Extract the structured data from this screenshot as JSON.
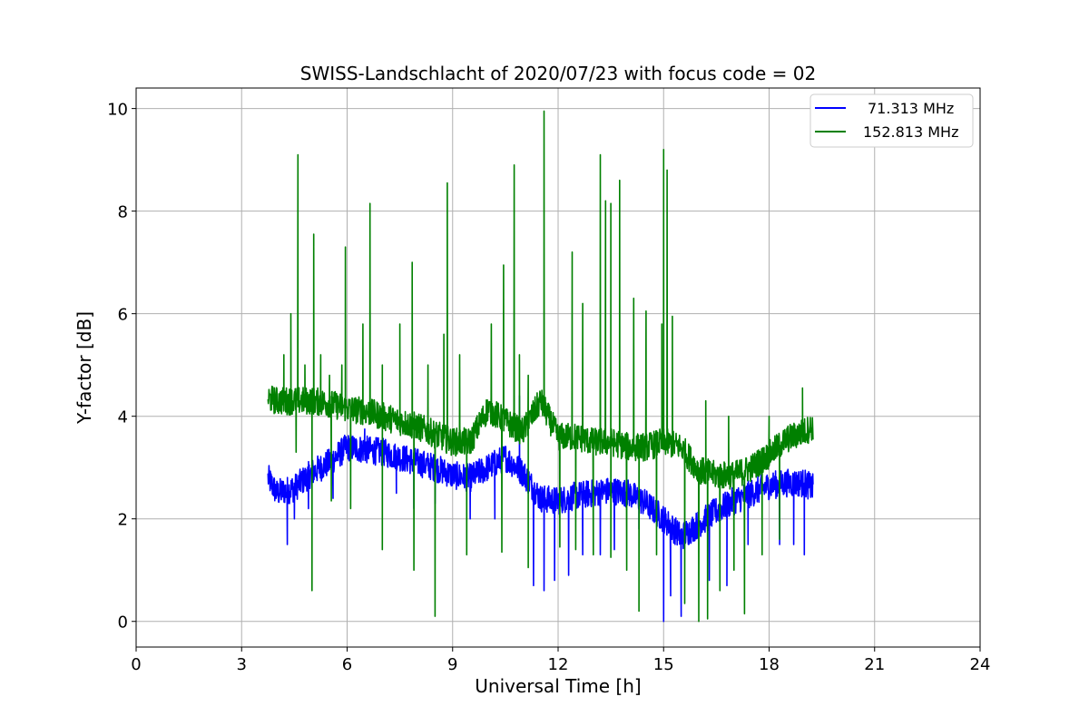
{
  "chart_data": {
    "type": "line",
    "title": "SWISS-Landschlacht of 2020/07/23 with focus code = 02",
    "xlabel": "Universal Time [h]",
    "ylabel": "Y-factor [dB]",
    "xlim": [
      0,
      24
    ],
    "ylim": [
      -0.5,
      10.4
    ],
    "xticks": [
      0,
      3,
      6,
      9,
      12,
      15,
      18,
      21,
      24
    ],
    "yticks": [
      0,
      2,
      4,
      6,
      8,
      10
    ],
    "grid": true,
    "legend_position": "top-right",
    "series": [
      {
        "name": "71.313 MHz",
        "color": "#0000ff",
        "baseline": [
          [
            3.75,
            2.8
          ],
          [
            4.0,
            2.5
          ],
          [
            4.5,
            2.6
          ],
          [
            5.0,
            2.9
          ],
          [
            5.5,
            3.1
          ],
          [
            6.0,
            3.4
          ],
          [
            6.5,
            3.35
          ],
          [
            7.0,
            3.3
          ],
          [
            7.5,
            3.2
          ],
          [
            8.0,
            3.1
          ],
          [
            8.5,
            3.0
          ],
          [
            9.0,
            2.85
          ],
          [
            9.5,
            2.8
          ],
          [
            10.0,
            3.0
          ],
          [
            10.5,
            3.2
          ],
          [
            11.0,
            2.9
          ],
          [
            11.5,
            2.4
          ],
          [
            12.0,
            2.35
          ],
          [
            12.5,
            2.45
          ],
          [
            13.0,
            2.5
          ],
          [
            13.5,
            2.55
          ],
          [
            14.0,
            2.5
          ],
          [
            14.5,
            2.3
          ],
          [
            15.0,
            2.0
          ],
          [
            15.5,
            1.65
          ],
          [
            16.0,
            1.9
          ],
          [
            16.5,
            2.15
          ],
          [
            17.0,
            2.35
          ],
          [
            17.5,
            2.5
          ],
          [
            18.0,
            2.65
          ],
          [
            18.5,
            2.7
          ],
          [
            19.0,
            2.7
          ],
          [
            19.25,
            2.6
          ]
        ],
        "spikes": [
          [
            4.3,
            1.5
          ],
          [
            4.5,
            2.0
          ],
          [
            4.9,
            2.2
          ],
          [
            5.6,
            2.4
          ],
          [
            7.4,
            2.5
          ],
          [
            7.9,
            2.2
          ],
          [
            8.5,
            2.3
          ],
          [
            9.5,
            2.0
          ],
          [
            10.2,
            2.0
          ],
          [
            11.3,
            0.7
          ],
          [
            11.6,
            0.6
          ],
          [
            11.9,
            0.8
          ],
          [
            12.3,
            0.9
          ],
          [
            12.7,
            1.3
          ],
          [
            13.2,
            1.3
          ],
          [
            13.6,
            1.4
          ],
          [
            14.3,
            1.8
          ],
          [
            15.0,
            0.0
          ],
          [
            15.2,
            0.5
          ],
          [
            15.5,
            0.1
          ],
          [
            16.3,
            0.8
          ],
          [
            16.8,
            0.7
          ],
          [
            17.4,
            1.5
          ],
          [
            18.3,
            1.5
          ],
          [
            18.7,
            1.5
          ],
          [
            19.0,
            1.3
          ],
          [
            10.9,
            4.4
          ],
          [
            6.5,
            3.75
          ]
        ]
      },
      {
        "name": "152.813 MHz",
        "color": "#008000",
        "baseline": [
          [
            3.75,
            4.35
          ],
          [
            4.0,
            4.3
          ],
          [
            4.5,
            4.3
          ],
          [
            5.0,
            4.3
          ],
          [
            5.5,
            4.25
          ],
          [
            6.0,
            4.15
          ],
          [
            6.5,
            4.1
          ],
          [
            7.0,
            4.0
          ],
          [
            7.5,
            3.9
          ],
          [
            8.0,
            3.8
          ],
          [
            8.5,
            3.65
          ],
          [
            9.0,
            3.5
          ],
          [
            9.5,
            3.5
          ],
          [
            10.0,
            4.15
          ],
          [
            10.5,
            3.9
          ],
          [
            11.0,
            3.7
          ],
          [
            11.5,
            4.3
          ],
          [
            12.0,
            3.6
          ],
          [
            12.5,
            3.6
          ],
          [
            13.0,
            3.5
          ],
          [
            13.5,
            3.5
          ],
          [
            14.0,
            3.4
          ],
          [
            14.5,
            3.4
          ],
          [
            15.0,
            3.5
          ],
          [
            15.5,
            3.4
          ],
          [
            16.0,
            2.95
          ],
          [
            16.5,
            2.85
          ],
          [
            17.0,
            2.85
          ],
          [
            17.5,
            3.0
          ],
          [
            18.0,
            3.25
          ],
          [
            18.5,
            3.55
          ],
          [
            19.0,
            3.7
          ],
          [
            19.25,
            3.8
          ]
        ],
        "spikes": [
          [
            4.2,
            5.2
          ],
          [
            4.4,
            6.0
          ],
          [
            4.6,
            9.1
          ],
          [
            4.8,
            5.0
          ],
          [
            5.05,
            7.55
          ],
          [
            5.25,
            5.2
          ],
          [
            5.5,
            4.8
          ],
          [
            5.85,
            5.0
          ],
          [
            5.95,
            7.3
          ],
          [
            6.45,
            5.8
          ],
          [
            6.65,
            8.15
          ],
          [
            7.0,
            5.0
          ],
          [
            7.5,
            5.8
          ],
          [
            7.85,
            7.0
          ],
          [
            8.3,
            5.0
          ],
          [
            8.75,
            5.6
          ],
          [
            8.85,
            8.55
          ],
          [
            9.2,
            5.2
          ],
          [
            10.1,
            5.8
          ],
          [
            10.45,
            6.95
          ],
          [
            10.75,
            8.9
          ],
          [
            10.9,
            5.2
          ],
          [
            11.15,
            4.8
          ],
          [
            11.6,
            9.95
          ],
          [
            12.4,
            7.2
          ],
          [
            12.7,
            6.2
          ],
          [
            13.2,
            9.1
          ],
          [
            13.35,
            8.2
          ],
          [
            13.5,
            8.15
          ],
          [
            13.75,
            8.6
          ],
          [
            14.15,
            6.3
          ],
          [
            14.5,
            6.05
          ],
          [
            14.95,
            5.8
          ],
          [
            15.0,
            9.2
          ],
          [
            15.1,
            8.8
          ],
          [
            15.25,
            5.95
          ],
          [
            16.2,
            4.3
          ],
          [
            16.85,
            4.0
          ],
          [
            18.0,
            4.0
          ],
          [
            18.95,
            4.55
          ],
          [
            5.0,
            0.6
          ],
          [
            7.0,
            1.4
          ],
          [
            8.5,
            0.1
          ],
          [
            7.9,
            1.0
          ],
          [
            9.4,
            1.3
          ],
          [
            10.4,
            1.35
          ],
          [
            11.15,
            1.05
          ],
          [
            12.05,
            1.45
          ],
          [
            12.5,
            1.4
          ],
          [
            13.0,
            1.3
          ],
          [
            13.5,
            1.25
          ],
          [
            13.95,
            1.0
          ],
          [
            14.3,
            0.2
          ],
          [
            14.8,
            1.3
          ],
          [
            15.6,
            0.35
          ],
          [
            16.0,
            0.0
          ],
          [
            16.25,
            0.05
          ],
          [
            16.6,
            0.6
          ],
          [
            17.0,
            1.0
          ],
          [
            17.3,
            0.15
          ],
          [
            17.8,
            1.3
          ],
          [
            18.3,
            1.6
          ],
          [
            6.1,
            2.2
          ],
          [
            5.55,
            2.35
          ],
          [
            4.55,
            3.3
          ]
        ]
      }
    ]
  }
}
